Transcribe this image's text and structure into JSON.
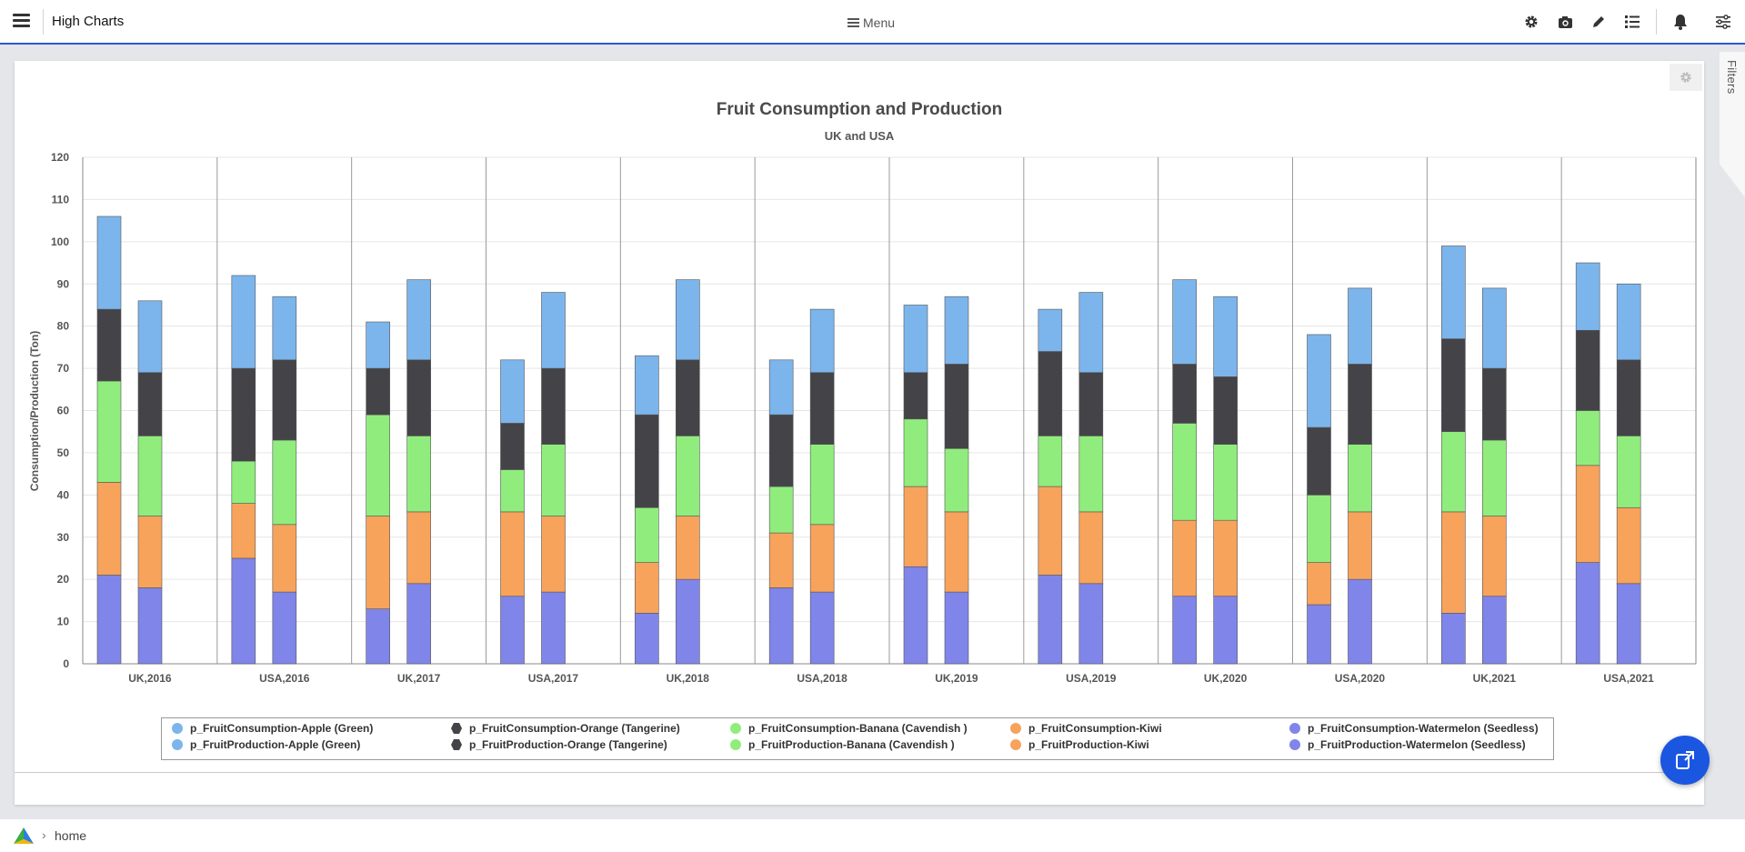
{
  "header": {
    "title": "High Charts",
    "menu_label": "Menu",
    "icons": [
      "gear-icon",
      "camera-icon",
      "pencil-icon",
      "list-icon",
      "bell-icon",
      "sliders-icon"
    ]
  },
  "filters": {
    "label": "Filters"
  },
  "breadcrumb": {
    "items": [
      "home"
    ]
  },
  "chart_data": {
    "type": "bar",
    "stacked": true,
    "title": "Fruit Consumption and Production",
    "subtitle": "UK and USA",
    "ylabel": "Consumption/Production (Ton)",
    "ylim": [
      0,
      120
    ],
    "yticks": [
      0,
      10,
      20,
      30,
      40,
      50,
      60,
      70,
      80,
      90,
      100,
      110,
      120
    ],
    "grid": true,
    "legend_position": "bottom",
    "categories": [
      "UK,2016",
      "USA,2016",
      "UK,2017",
      "USA,2017",
      "UK,2018",
      "USA,2018",
      "UK,2019",
      "USA,2019",
      "UK,2020",
      "USA,2020",
      "UK,2021",
      "USA,2021"
    ],
    "stacks": [
      "Consumption",
      "Production"
    ],
    "colors": {
      "Apple (Green)": "#7cb5ec",
      "Orange (Tangerine)": "#434348",
      "Banana (Cavendish )": "#90ed7d",
      "Kiwi": "#f7a35c",
      "Watermelon (Seedless)": "#8085e9"
    },
    "series": [
      {
        "name": "p_FruitConsumption-Watermelon (Seedless)",
        "stack": "Consumption",
        "fruit": "Watermelon (Seedless)",
        "values": [
          21,
          25,
          13,
          16,
          12,
          18,
          23,
          21,
          16,
          14,
          12,
          24
        ]
      },
      {
        "name": "p_FruitConsumption-Kiwi",
        "stack": "Consumption",
        "fruit": "Kiwi",
        "values": [
          22,
          13,
          22,
          20,
          12,
          13,
          19,
          21,
          18,
          10,
          24,
          23
        ]
      },
      {
        "name": "p_FruitConsumption-Banana (Cavendish )",
        "stack": "Consumption",
        "fruit": "Banana (Cavendish )",
        "values": [
          24,
          10,
          24,
          10,
          13,
          11,
          16,
          12,
          23,
          16,
          19,
          13
        ]
      },
      {
        "name": "p_FruitConsumption-Orange (Tangerine)",
        "stack": "Consumption",
        "fruit": "Orange (Tangerine)",
        "values": [
          17,
          22,
          11,
          11,
          22,
          17,
          11,
          20,
          14,
          16,
          22,
          19
        ]
      },
      {
        "name": "p_FruitConsumption-Apple (Green)",
        "stack": "Consumption",
        "fruit": "Apple (Green)",
        "values": [
          22,
          22,
          11,
          15,
          14,
          13,
          16,
          10,
          20,
          22,
          22,
          16
        ]
      },
      {
        "name": "p_FruitProduction-Watermelon (Seedless)",
        "stack": "Production",
        "fruit": "Watermelon (Seedless)",
        "values": [
          18,
          17,
          19,
          17,
          20,
          17,
          17,
          19,
          16,
          20,
          16,
          19
        ]
      },
      {
        "name": "p_FruitProduction-Kiwi",
        "stack": "Production",
        "fruit": "Kiwi",
        "values": [
          17,
          16,
          17,
          18,
          15,
          16,
          19,
          17,
          18,
          16,
          19,
          18
        ]
      },
      {
        "name": "p_FruitProduction-Banana (Cavendish )",
        "stack": "Production",
        "fruit": "Banana (Cavendish )",
        "values": [
          19,
          20,
          18,
          17,
          19,
          19,
          15,
          18,
          18,
          16,
          18,
          17
        ]
      },
      {
        "name": "p_FruitProduction-Orange (Tangerine)",
        "stack": "Production",
        "fruit": "Orange (Tangerine)",
        "values": [
          15,
          19,
          18,
          18,
          18,
          17,
          20,
          15,
          16,
          19,
          17,
          18
        ]
      },
      {
        "name": "p_FruitProduction-Apple (Green)",
        "stack": "Production",
        "fruit": "Apple (Green)",
        "values": [
          17,
          15,
          19,
          18,
          19,
          15,
          16,
          19,
          19,
          18,
          19,
          18
        ]
      }
    ]
  },
  "legend": {
    "items": [
      {
        "label": "p_FruitConsumption-Apple (Green)",
        "color": "#7cb5ec",
        "marker": "circle"
      },
      {
        "label": "p_FruitConsumption-Orange (Tangerine)",
        "color": "#434348",
        "marker": "hex"
      },
      {
        "label": "p_FruitConsumption-Banana (Cavendish )",
        "color": "#90ed7d",
        "marker": "circle"
      },
      {
        "label": "p_FruitConsumption-Kiwi",
        "color": "#f7a35c",
        "marker": "circle"
      },
      {
        "label": "p_FruitConsumption-Watermelon (Seedless)",
        "color": "#8085e9",
        "marker": "circle"
      },
      {
        "label": "p_FruitProduction-Apple (Green)",
        "color": "#7cb5ec",
        "marker": "circle"
      },
      {
        "label": "p_FruitProduction-Orange (Tangerine)",
        "color": "#434348",
        "marker": "hex"
      },
      {
        "label": "p_FruitProduction-Banana (Cavendish )",
        "color": "#90ed7d",
        "marker": "circle"
      },
      {
        "label": "p_FruitProduction-Kiwi",
        "color": "#f7a35c",
        "marker": "circle"
      },
      {
        "label": "p_FruitProduction-Watermelon (Seedless)",
        "color": "#8085e9",
        "marker": "circle"
      }
    ]
  }
}
